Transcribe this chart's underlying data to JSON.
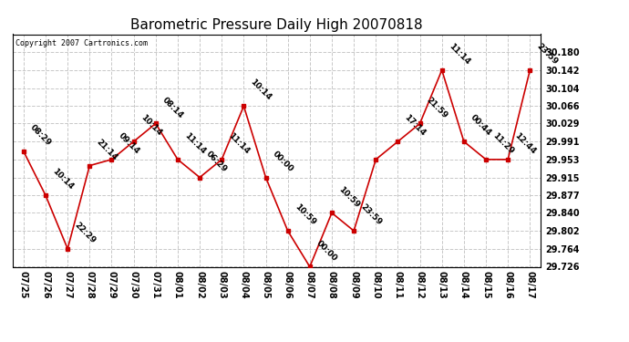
{
  "title": "Barometric Pressure Daily High 20070818",
  "copyright": "Copyright 2007 Cartronics.com",
  "x_labels": [
    "07/25",
    "07/26",
    "07/27",
    "07/28",
    "07/29",
    "07/30",
    "07/31",
    "08/01",
    "08/02",
    "08/03",
    "08/04",
    "08/05",
    "08/06",
    "08/07",
    "08/08",
    "08/09",
    "08/10",
    "08/11",
    "08/12",
    "08/13",
    "08/14",
    "08/15",
    "08/16",
    "08/17"
  ],
  "y_values": [
    29.97,
    29.877,
    29.764,
    29.94,
    29.953,
    29.991,
    30.029,
    29.953,
    29.915,
    29.953,
    30.066,
    29.915,
    29.802,
    29.726,
    29.84,
    29.802,
    29.953,
    29.991,
    30.029,
    30.142,
    29.991,
    29.953,
    29.953,
    30.142
  ],
  "time_labels": [
    "08:29",
    "10:14",
    "22:29",
    "21:14",
    "09:14",
    "10:14",
    "08:14",
    "11:14",
    "06:29",
    "11:14",
    "10:14",
    "00:00",
    "10:59",
    "00:00",
    "10:59",
    "23:59",
    "",
    "17:14",
    "21:59",
    "11:14",
    "00:44",
    "11:29",
    "12:44",
    "23:59"
  ],
  "ylim_min": 29.726,
  "ylim_max": 30.218,
  "yticks": [
    29.726,
    29.764,
    29.802,
    29.84,
    29.877,
    29.915,
    29.953,
    29.991,
    30.029,
    30.066,
    30.104,
    30.142,
    30.18
  ],
  "line_color": "#cc0000",
  "marker_color": "#cc0000",
  "bg_color": "#ffffff",
  "grid_color": "#c8c8c8",
  "title_fontsize": 11,
  "tick_fontsize": 7,
  "label_fontsize": 6.5,
  "copyright_fontsize": 6
}
